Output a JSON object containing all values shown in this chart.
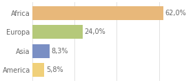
{
  "categories": [
    "Africa",
    "Europa",
    "Asia",
    "America"
  ],
  "values": [
    62.0,
    24.0,
    8.3,
    5.8
  ],
  "labels": [
    "62,0%",
    "24,0%",
    "8,3%",
    "5,8%"
  ],
  "bar_colors": [
    "#e8b87a",
    "#b5c97a",
    "#7a8fc4",
    "#f0d07a"
  ],
  "background_color": "#ffffff",
  "xlim": [
    0,
    75
  ],
  "bar_height": 0.72,
  "label_fontsize": 7.0,
  "tick_fontsize": 7.0,
  "grid_color": "#dddddd",
  "text_color": "#666666"
}
